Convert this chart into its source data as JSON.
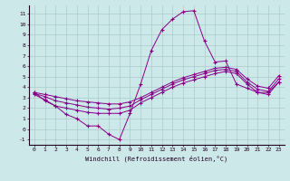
{
  "xlabel": "Windchill (Refroidissement éolien,°C)",
  "background_color": "#cce8e8",
  "grid_color": "#aacccc",
  "line_color": "#880088",
  "hours": [
    0,
    1,
    2,
    3,
    4,
    5,
    6,
    7,
    8,
    9,
    10,
    11,
    12,
    13,
    14,
    15,
    16,
    17,
    18,
    19,
    20,
    21,
    22,
    23
  ],
  "series1": [
    3.5,
    2.7,
    2.2,
    1.4,
    1.0,
    0.3,
    0.3,
    -0.5,
    -1.0,
    1.5,
    4.3,
    7.5,
    9.5,
    10.5,
    11.2,
    11.3,
    8.4,
    6.4,
    6.5,
    4.3,
    3.9,
    3.5,
    3.5,
    4.5
  ],
  "series2": [
    3.3,
    2.8,
    2.2,
    2.0,
    1.8,
    1.6,
    1.5,
    1.5,
    1.5,
    1.8,
    2.5,
    3.0,
    3.5,
    4.0,
    4.4,
    4.7,
    5.0,
    5.3,
    5.5,
    5.3,
    4.3,
    3.5,
    3.3,
    4.5
  ],
  "series3": [
    3.4,
    3.1,
    2.7,
    2.5,
    2.3,
    2.1,
    2.0,
    1.9,
    2.0,
    2.2,
    2.8,
    3.3,
    3.8,
    4.3,
    4.7,
    5.0,
    5.3,
    5.6,
    5.7,
    5.5,
    4.5,
    3.8,
    3.6,
    4.8
  ],
  "series4": [
    3.5,
    3.3,
    3.1,
    2.9,
    2.7,
    2.6,
    2.5,
    2.4,
    2.4,
    2.6,
    3.0,
    3.5,
    4.0,
    4.5,
    4.9,
    5.2,
    5.5,
    5.8,
    5.9,
    5.7,
    4.8,
    4.1,
    3.9,
    5.1
  ],
  "ylim": [
    -1.5,
    11.8
  ],
  "yticks": [
    -1,
    0,
    1,
    2,
    3,
    4,
    5,
    6,
    7,
    8,
    9,
    10,
    11
  ],
  "xlim": [
    -0.5,
    23.5
  ],
  "xticks": [
    0,
    1,
    2,
    3,
    4,
    5,
    6,
    7,
    8,
    9,
    10,
    11,
    12,
    13,
    14,
    15,
    16,
    17,
    18,
    19,
    20,
    21,
    22,
    23
  ],
  "figsize": [
    3.2,
    2.0
  ],
  "dpi": 100
}
